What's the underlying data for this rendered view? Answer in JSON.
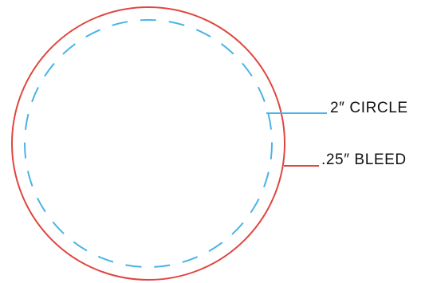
{
  "diagram": {
    "circle_label": "2″ CIRCLE",
    "bleed_label": ".25″ BLEED"
  },
  "colors": {
    "bleed_line": "#e0453f",
    "circle_line": "#4ab3e6",
    "text": "#111111",
    "background": "#ffffff"
  }
}
